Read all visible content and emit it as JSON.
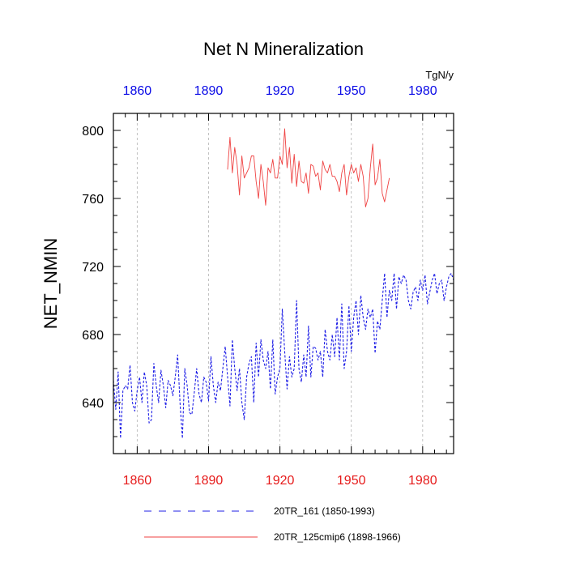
{
  "colors": {
    "blue_series": "#1f1fe6",
    "red_series": "#ef4242",
    "bottom_ticks": "#e61a1a",
    "top_ticks": "#0a0ae6",
    "axis": "#000000",
    "grid": "#b3b3b3"
  },
  "chart_data": {
    "type": "line",
    "title": "Net N Mineralization",
    "ylabel": "NET_NMIN",
    "units": "TgN/y",
    "xlim": [
      1850,
      1993
    ],
    "ylim": [
      610,
      810
    ],
    "x_ticks": [
      1860,
      1890,
      1920,
      1950,
      1980
    ],
    "x_tick_labels": [
      "1860",
      "1890",
      "1920",
      "1950",
      "1980"
    ],
    "y_ticks": [
      640,
      680,
      720,
      760,
      800
    ],
    "y_tick_labels": [
      "640",
      "680",
      "720",
      "760",
      "800"
    ],
    "grid": "vertical dashed at x ticks",
    "legend_position": "bottom",
    "series": [
      {
        "name": "20TR_161 (1850-1993)",
        "style": "dashed",
        "color": "#1f1fe6",
        "x_start": 1850,
        "values": [
          653,
          636,
          658,
          619,
          647,
          650,
          648,
          662,
          640,
          635,
          647,
          655,
          640,
          658,
          650,
          628,
          630,
          663,
          650,
          640,
          659,
          650,
          637,
          653,
          650,
          644,
          655,
          668,
          640,
          619,
          660,
          650,
          634,
          633,
          646,
          660,
          645,
          640,
          655,
          652,
          641,
          667,
          650,
          640,
          652,
          647,
          660,
          673,
          655,
          638,
          677,
          660,
          647,
          660,
          640,
          630,
          655,
          663,
          667,
          640,
          675,
          655,
          677,
          665,
          660,
          670,
          648,
          677,
          645,
          655,
          660,
          695,
          670,
          648,
          667,
          655,
          660,
          700,
          660,
          652,
          668,
          655,
          685,
          655,
          673,
          672,
          665,
          670,
          655,
          683,
          670,
          665,
          680,
          667,
          690,
          665,
          698,
          660,
          670,
          697,
          670,
          690,
          700,
          680,
          703,
          690,
          683,
          695,
          690,
          695,
          669,
          688,
          683,
          700,
          716,
          690,
          706,
          700,
          716,
          695,
          714,
          710,
          715,
          712,
          700,
          695,
          705,
          708,
          700,
          712,
          706,
          715,
          698,
          705,
          712,
          716,
          704,
          710,
          712,
          700,
          708,
          714,
          716,
          712
        ]
      },
      {
        "name": "20TR_125cmip6 (1898-1966)",
        "style": "solid",
        "color": "#ef4242",
        "x_start": 1898,
        "values": [
          777,
          796,
          775,
          790,
          780,
          762,
          785,
          772,
          775,
          778,
          785,
          785,
          770,
          760,
          780,
          770,
          756,
          778,
          775,
          783,
          772,
          772,
          785,
          780,
          801,
          778,
          790,
          769,
          786,
          767,
          782,
          770,
          769,
          775,
          763,
          780,
          779,
          773,
          775,
          765,
          782,
          777,
          775,
          780,
          773,
          773,
          770,
          764,
          775,
          780,
          762,
          773,
          780,
          775,
          778,
          770,
          780,
          773,
          755,
          760,
          778,
          792,
          768,
          772,
          783,
          763,
          758,
          765,
          772
        ]
      }
    ],
    "legend": [
      {
        "label": "20TR_161 (1850-1993)",
        "style": "dashed",
        "color": "#1f1fe6"
      },
      {
        "label": "20TR_125cmip6 (1898-1966)",
        "style": "solid",
        "color": "#ef4242"
      }
    ]
  }
}
